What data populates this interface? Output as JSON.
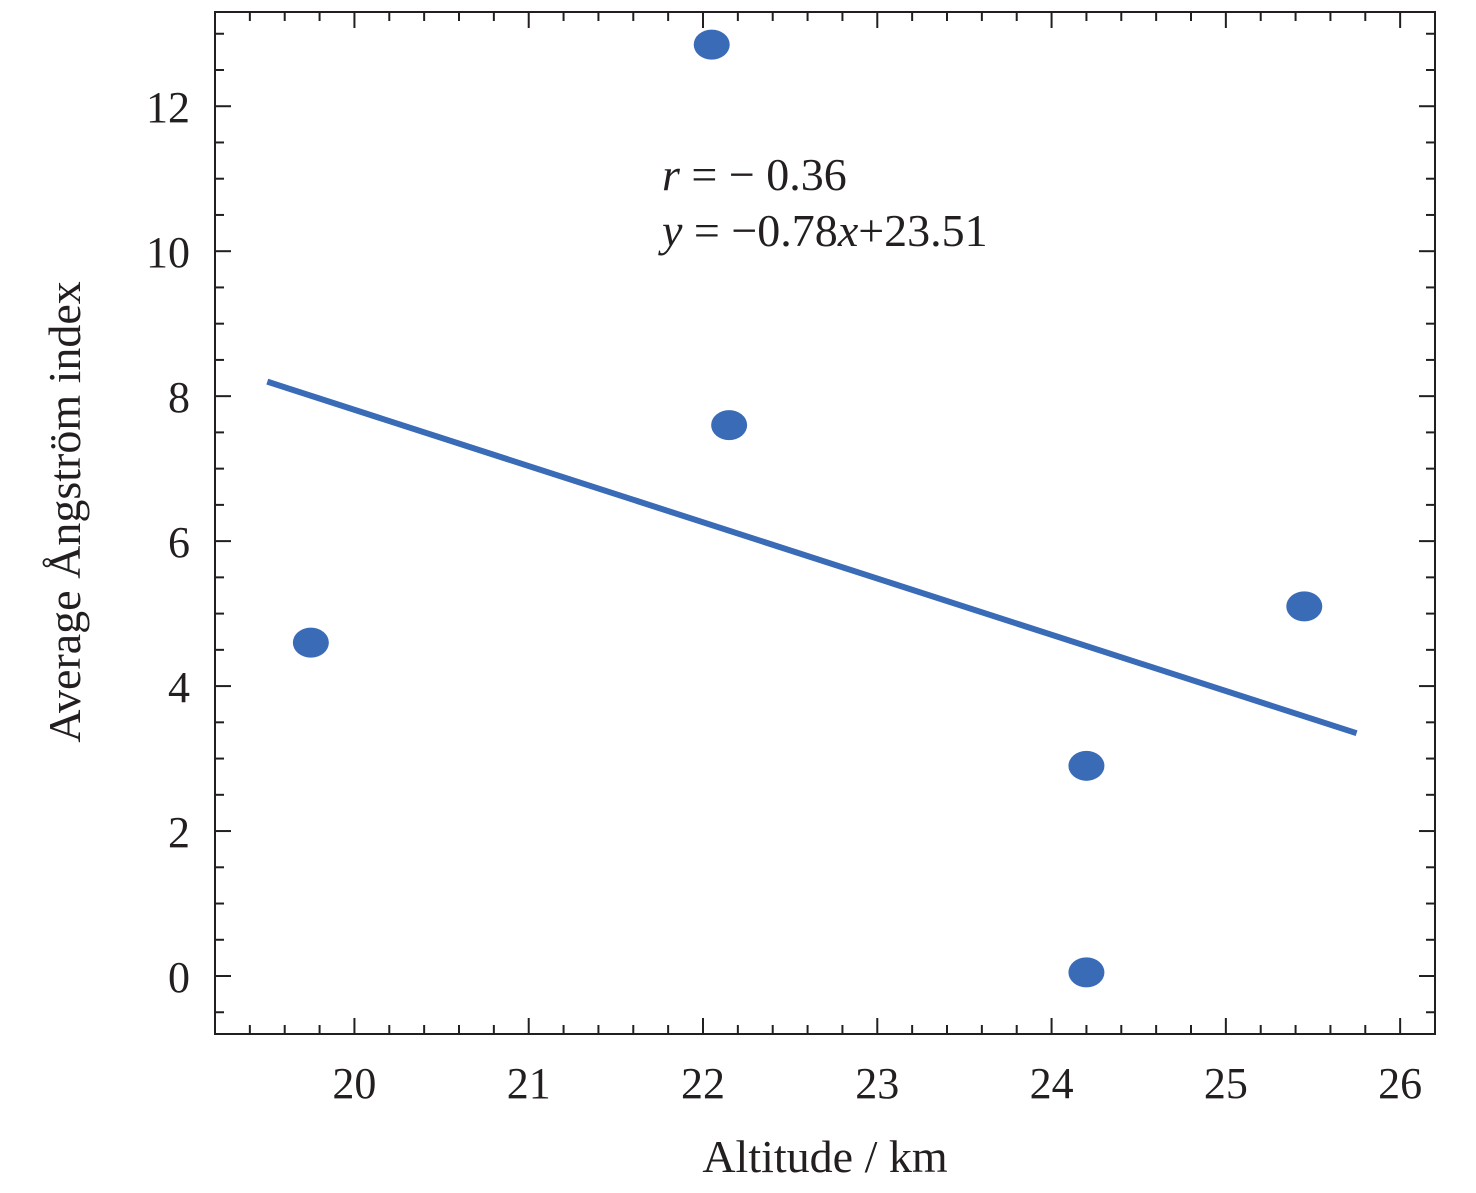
{
  "chart_data": {
    "type": "scatter",
    "xlabel": "Altitude / km",
    "ylabel": "Average Ångström index",
    "xlim": [
      19.2,
      26.2
    ],
    "ylim": [
      -0.8,
      13.3
    ],
    "xticks": [
      20,
      21,
      22,
      23,
      24,
      25,
      26
    ],
    "yticks": [
      0,
      2,
      4,
      6,
      8,
      10,
      12
    ],
    "x_tick_labels": [
      "20",
      "21",
      "22",
      "23",
      "24",
      "25",
      "26"
    ],
    "y_tick_labels": [
      "0",
      "2",
      "4",
      "6",
      "8",
      "10",
      "12"
    ],
    "x_minor_step": 0.2,
    "y_minor_step": 0.5,
    "grid": false,
    "points": [
      {
        "x": 19.75,
        "y": 4.6
      },
      {
        "x": 22.05,
        "y": 12.85
      },
      {
        "x": 22.15,
        "y": 7.6
      },
      {
        "x": 24.2,
        "y": 2.9
      },
      {
        "x": 24.2,
        "y": 0.05
      },
      {
        "x": 25.45,
        "y": 5.1
      }
    ],
    "fit_line": {
      "x": [
        19.5,
        25.75
      ],
      "y": [
        8.2,
        3.35
      ]
    },
    "annotation": {
      "r_symbol": "r",
      "r_text": " = − 0.36",
      "eq_y": "y",
      "eq_mid": " = −0.78",
      "eq_x": "x",
      "eq_end": "+23.51"
    },
    "colors": {
      "marker": "#3a6bb7",
      "line": "#3a6bb7",
      "axis": "#231f20"
    }
  }
}
